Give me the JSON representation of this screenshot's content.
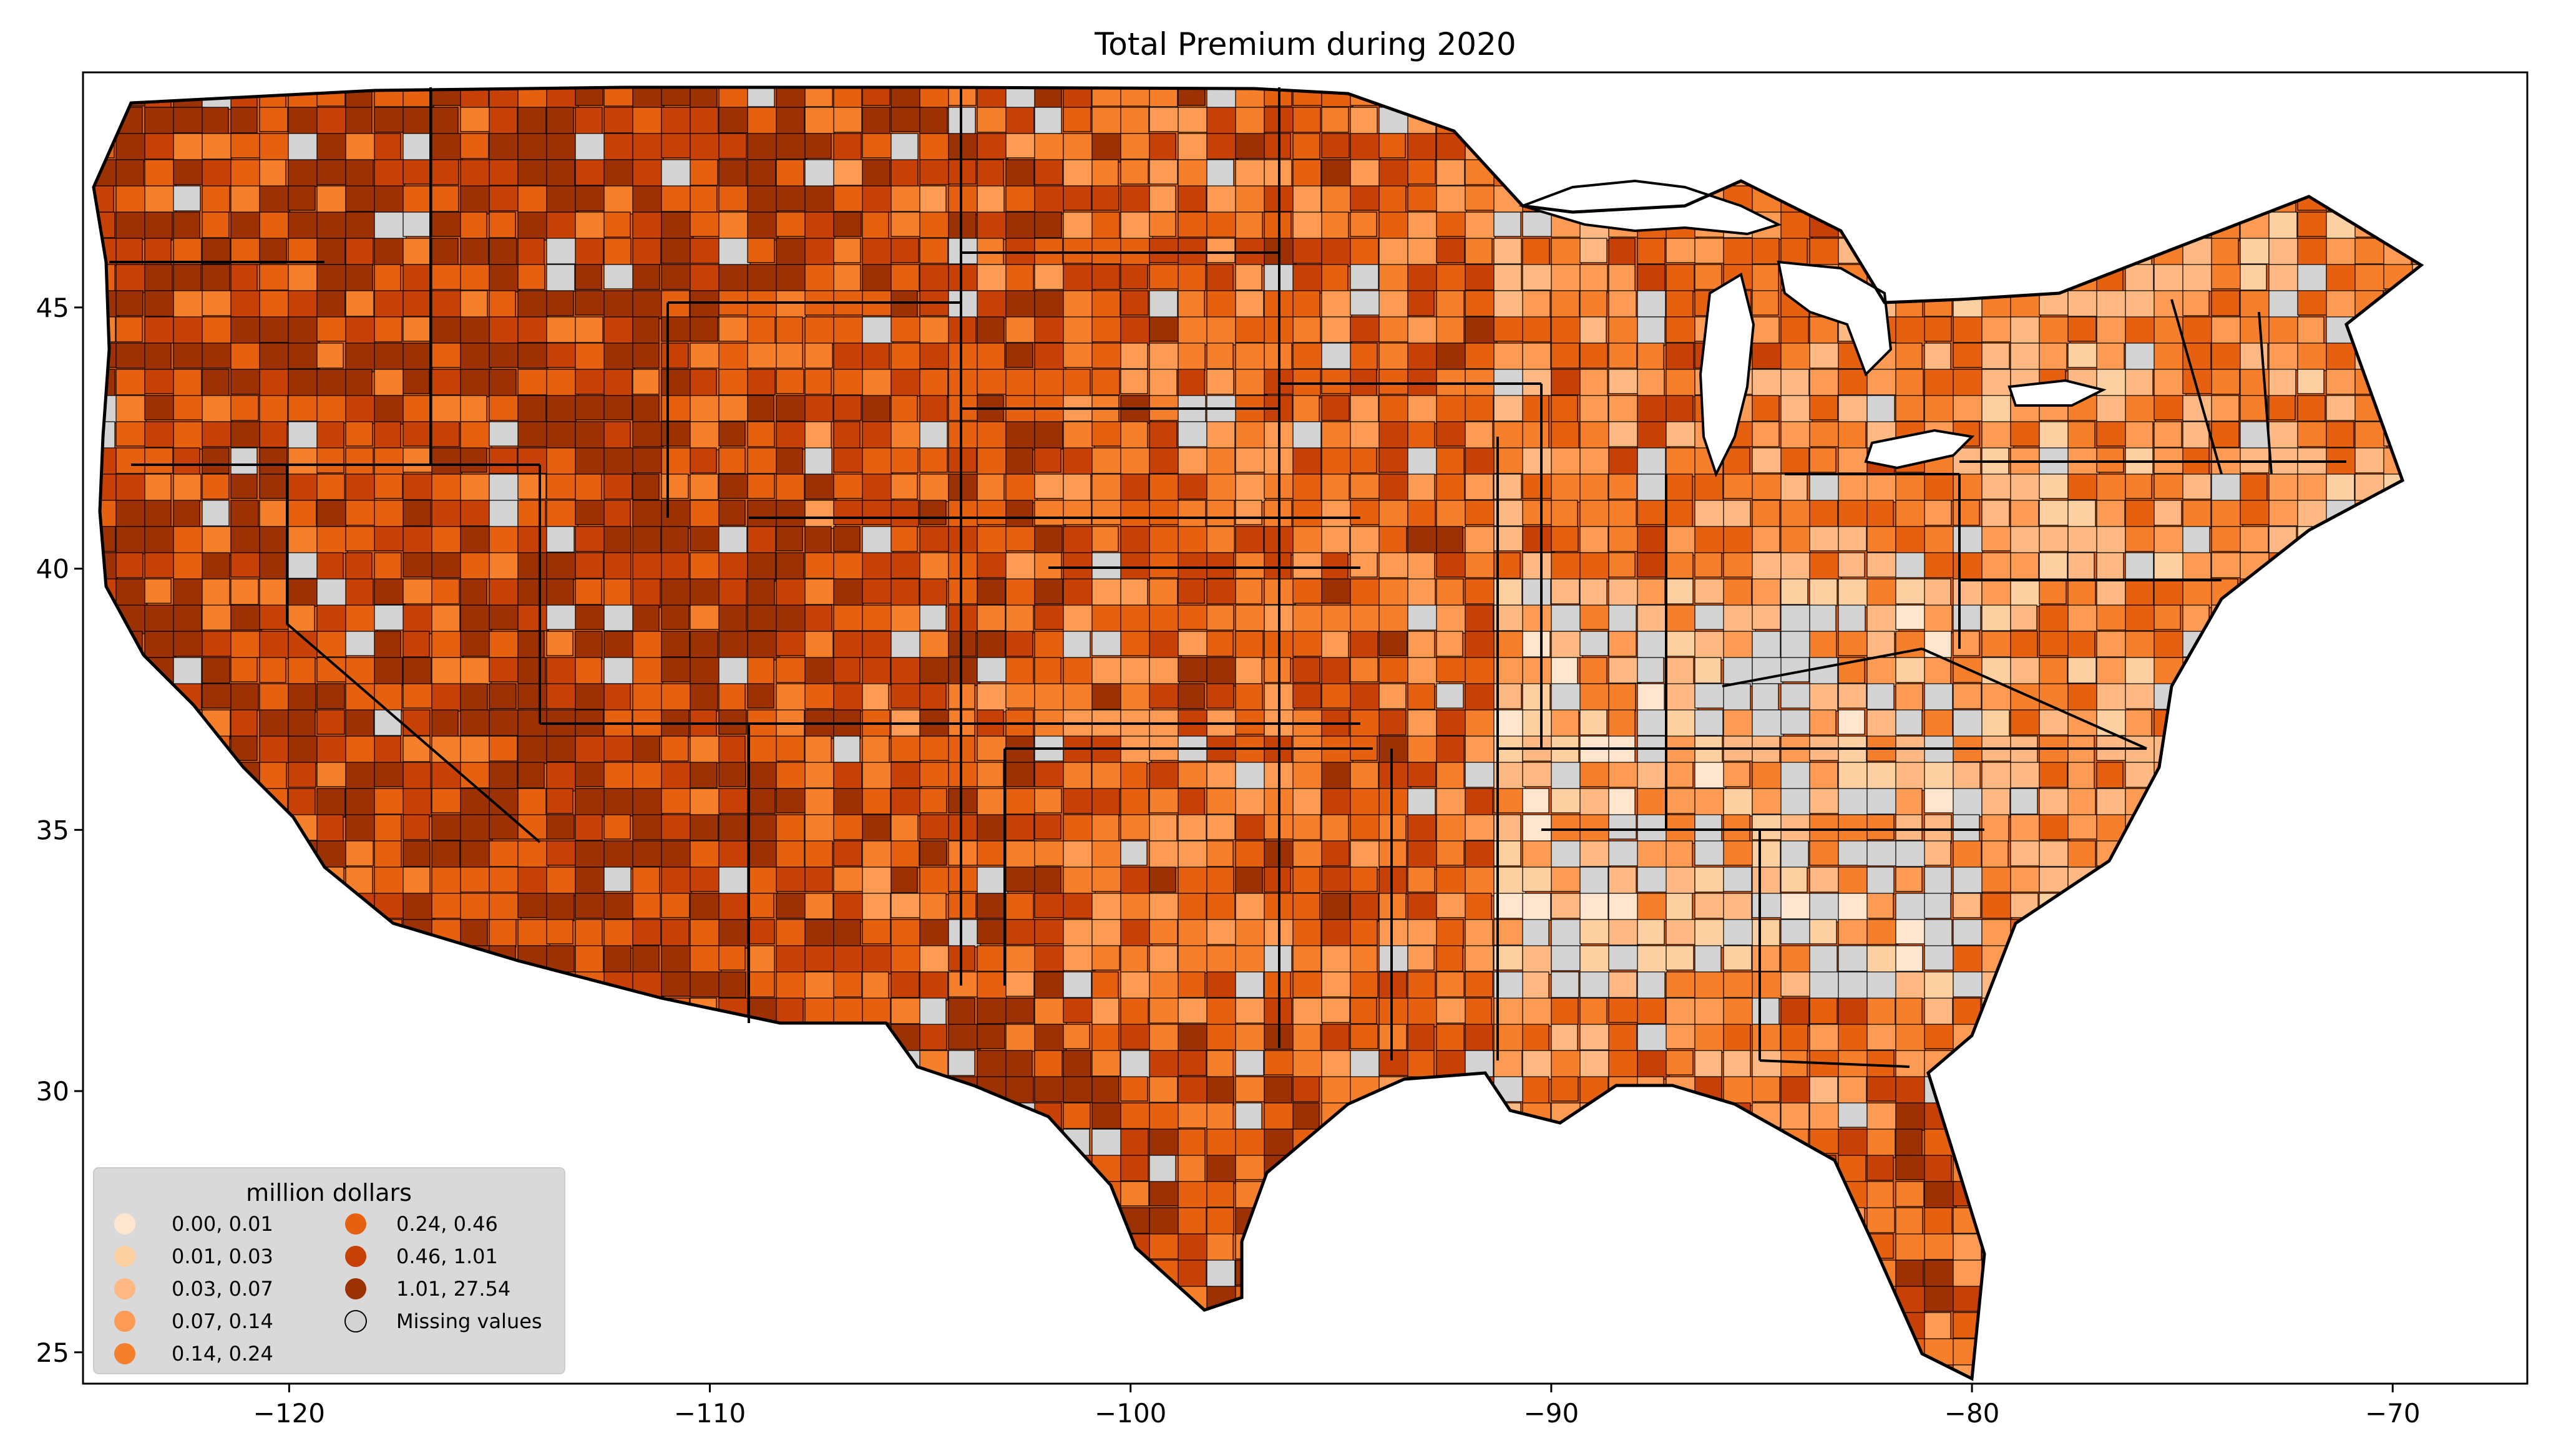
{
  "title": "Total  Premium during 2020",
  "colors": {
    "missing": "#d3d3d3",
    "state_border": "#000000",
    "county_border": "#000000",
    "legend_bg": "#d9d9d9"
  },
  "axes": {
    "x_ticks": [
      -120,
      -110,
      -100,
      -90,
      -80,
      -70
    ],
    "x_tick_labels": [
      "−120",
      "−110",
      "−100",
      "−90",
      "−80",
      "−70"
    ],
    "y_ticks": [
      25,
      30,
      35,
      40,
      45
    ],
    "y_tick_labels": [
      "25",
      "30",
      "35",
      "40",
      "45"
    ],
    "xlim": [
      -124.9,
      -66.8
    ],
    "ylim": [
      24.4,
      49.5
    ]
  },
  "legend": {
    "title": "million dollars",
    "placement": "lower-left",
    "items": [
      {
        "label": "0.00,  0.01",
        "color": "#fee6ce"
      },
      {
        "label": "0.01,  0.03",
        "color": "#fdd0a2"
      },
      {
        "label": "0.03,  0.07",
        "color": "#fdb883"
      },
      {
        "label": "0.07,  0.14",
        "color": "#fd9a53"
      },
      {
        "label": "0.14,  0.24",
        "color": "#f67f2c"
      },
      {
        "label": "0.24,  0.46",
        "color": "#e6610f"
      },
      {
        "label": "0.46,  1.01",
        "color": "#c74106"
      },
      {
        "label": "1.01, 27.54",
        "color": "#9c3103"
      },
      {
        "label": "Missing values",
        "color": "#d3d3d3"
      }
    ]
  }
}
